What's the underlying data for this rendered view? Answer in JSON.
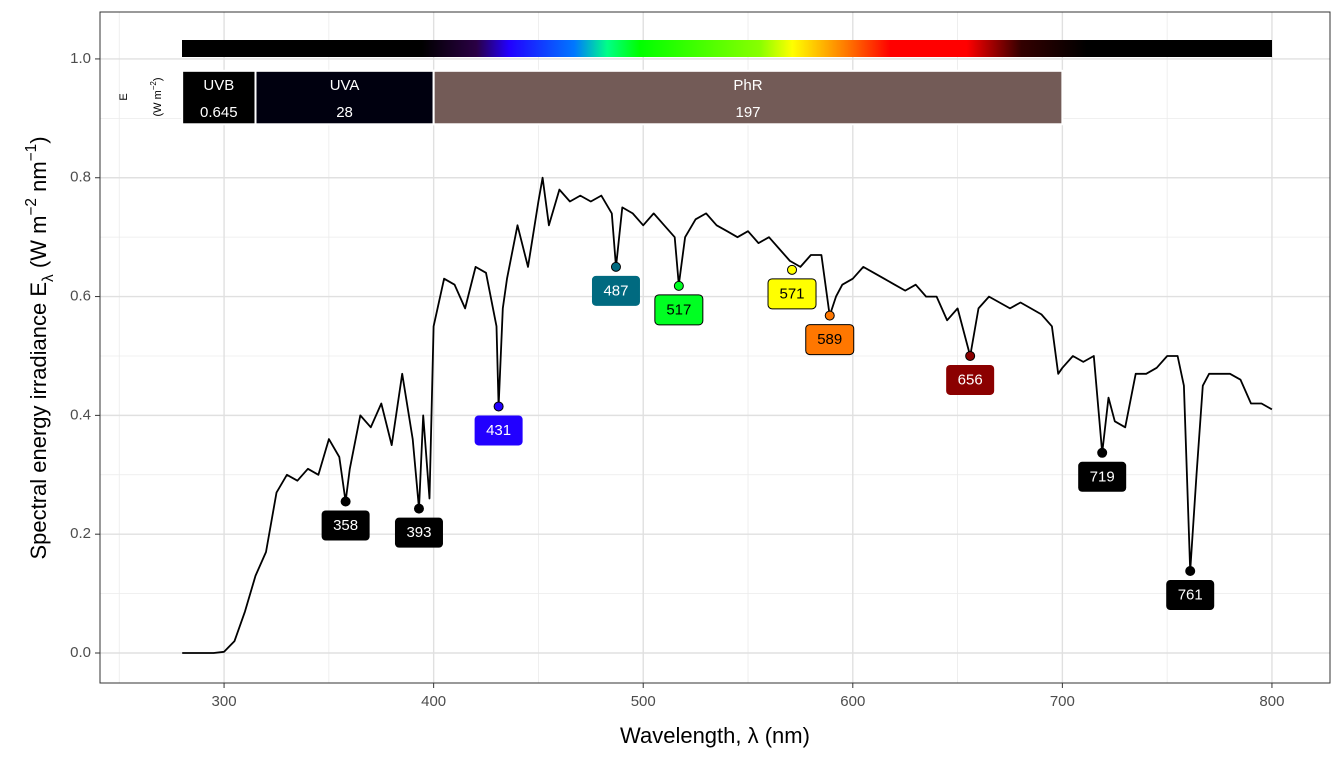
{
  "chart_data": {
    "type": "line",
    "x_label": "Wavelength, λ (nm)",
    "y_label": [
      "Spectral  energy  irradiance  E",
      "λ",
      "  (W m",
      "−2",
      " nm",
      "−1",
      ")"
    ],
    "band_axis_label": [
      "E",
      "(W m",
      "−2",
      ")"
    ],
    "color": "#000000",
    "x": [
      280,
      285,
      290,
      295,
      300,
      305,
      310,
      315,
      320,
      325,
      330,
      335,
      340,
      345,
      350,
      355,
      358,
      360,
      365,
      370,
      375,
      380,
      385,
      390,
      393,
      395,
      398,
      400,
      405,
      410,
      415,
      420,
      425,
      430,
      431,
      433,
      435,
      440,
      445,
      450,
      452,
      455,
      460,
      465,
      470,
      475,
      480,
      485,
      487,
      490,
      495,
      500,
      505,
      510,
      515,
      517,
      520,
      525,
      530,
      535,
      540,
      545,
      550,
      555,
      560,
      565,
      570,
      575,
      580,
      585,
      589,
      592,
      595,
      600,
      605,
      610,
      615,
      620,
      625,
      630,
      635,
      640,
      645,
      650,
      656,
      660,
      665,
      670,
      675,
      680,
      685,
      690,
      695,
      698,
      700,
      705,
      710,
      715,
      719,
      722,
      725,
      730,
      735,
      740,
      745,
      750,
      755,
      758,
      761,
      764,
      767,
      770,
      775,
      780,
      785,
      790,
      795,
      800
    ],
    "values": [
      0,
      0,
      0,
      0,
      0.002,
      0.02,
      0.07,
      0.13,
      0.17,
      0.27,
      0.3,
      0.29,
      0.31,
      0.3,
      0.36,
      0.33,
      0.255,
      0.31,
      0.4,
      0.38,
      0.42,
      0.35,
      0.47,
      0.36,
      0.243,
      0.4,
      0.26,
      0.55,
      0.63,
      0.62,
      0.58,
      0.65,
      0.64,
      0.55,
      0.415,
      0.58,
      0.63,
      0.72,
      0.65,
      0.76,
      0.8,
      0.72,
      0.78,
      0.76,
      0.77,
      0.76,
      0.77,
      0.74,
      0.65,
      0.75,
      0.74,
      0.72,
      0.74,
      0.72,
      0.7,
      0.62,
      0.7,
      0.73,
      0.74,
      0.72,
      0.71,
      0.7,
      0.71,
      0.69,
      0.7,
      0.68,
      0.66,
      0.65,
      0.67,
      0.67,
      0.568,
      0.6,
      0.62,
      0.63,
      0.65,
      0.64,
      0.63,
      0.62,
      0.61,
      0.62,
      0.6,
      0.6,
      0.56,
      0.58,
      0.5,
      0.58,
      0.6,
      0.59,
      0.58,
      0.59,
      0.58,
      0.57,
      0.55,
      0.47,
      0.48,
      0.5,
      0.49,
      0.5,
      0.337,
      0.43,
      0.39,
      0.38,
      0.47,
      0.47,
      0.48,
      0.5,
      0.5,
      0.45,
      0.138,
      0.3,
      0.45,
      0.47,
      0.47,
      0.47,
      0.46,
      0.42,
      0.42,
      0.41
    ],
    "peaks": {
      "x": [
        358,
        393,
        431,
        487,
        517,
        571,
        589,
        656,
        719,
        761
      ],
      "y": [
        0.255,
        0.243,
        0.415,
        0.65,
        0.618,
        0.645,
        0.568,
        0.5,
        0.337,
        0.138
      ],
      "colors": [
        "#000000",
        "#000000",
        "#2200ff",
        "#006a80",
        "#00ff22",
        "#ffff00",
        "#ff7700",
        "#8b0000",
        "#000000",
        "#000000"
      ]
    },
    "bands": [
      {
        "name": "UVB",
        "from": 280,
        "to": 315,
        "value": 0.645,
        "color": "#000000"
      },
      {
        "name": "UVA",
        "from": 315,
        "to": 400,
        "value": 28,
        "color": "#00000f"
      },
      {
        "name": "PhR",
        "from": 400,
        "to": 700,
        "value": 197,
        "color": "#735b57"
      }
    ],
    "xlim": [
      240.8,
      827.7
    ],
    "ylim": [
      -0.0505,
      1.079
    ],
    "xticks": [
      300,
      400,
      500,
      600,
      700,
      800
    ],
    "xminor": [
      250,
      350,
      450,
      550,
      650,
      750
    ],
    "yticks": [
      {
        "value": 0,
        "label": "0.0"
      },
      {
        "value": 0.2,
        "label": "0.2"
      },
      {
        "value": 0.4,
        "label": "0.4"
      },
      {
        "value": 0.6,
        "label": "0.6"
      },
      {
        "value": 0.8,
        "label": "0.8"
      },
      {
        "value": 1,
        "label": "1.0"
      }
    ],
    "yminor": [
      0.1,
      0.3,
      0.5,
      0.7,
      0.9
    ],
    "grid": true
  }
}
